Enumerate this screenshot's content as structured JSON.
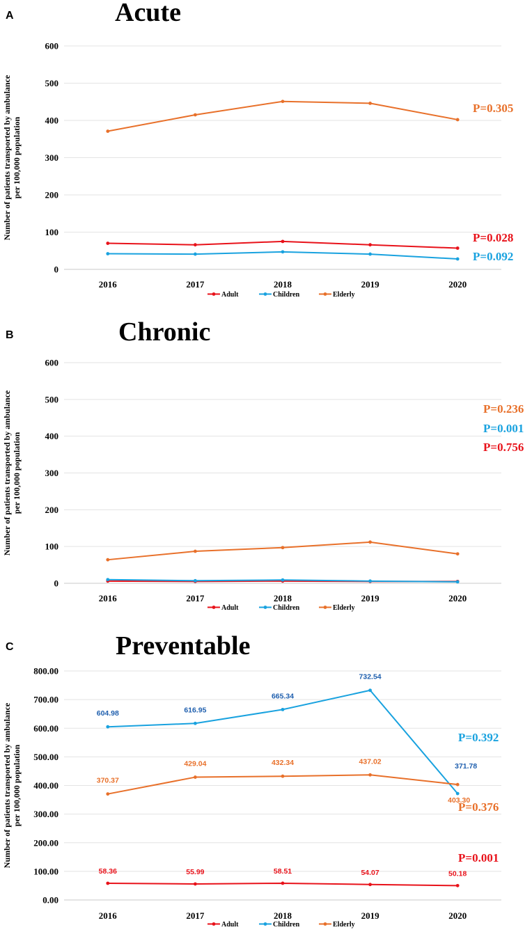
{
  "chart_data": [
    {
      "type": "line",
      "panel_label": "A",
      "title": "Acute",
      "ylabel_line1": "Number of patients transported by ambulance",
      "ylabel_line2": "per 100,000 population",
      "categories": [
        "2016",
        "2017",
        "2018",
        "2019",
        "2020"
      ],
      "ylim": [
        0,
        600
      ],
      "yticks": [
        "0",
        "100",
        "200",
        "300",
        "400",
        "500",
        "600"
      ],
      "grid": true,
      "legend_position": "bottom",
      "series": [
        {
          "name": "Adult",
          "color": "#e8121a",
          "values": [
            70,
            66,
            75,
            66,
            57
          ],
          "p_value": "P=0.028"
        },
        {
          "name": "Children",
          "color": "#19a2df",
          "values": [
            42,
            41,
            47,
            41,
            28
          ],
          "p_value": "P=0.092"
        },
        {
          "name": "Elderly",
          "color": "#e8702a",
          "values": [
            371,
            415,
            451,
            446,
            402
          ],
          "p_value": "P=0.305"
        }
      ]
    },
    {
      "type": "line",
      "panel_label": "B",
      "title": "Chronic",
      "ylabel_line1": "Number of patients transported by ambulance",
      "ylabel_line2": "per 100,000 population",
      "categories": [
        "2016",
        "2017",
        "2018",
        "2019",
        "2020"
      ],
      "ylim": [
        0,
        600
      ],
      "yticks": [
        "0",
        "100",
        "200",
        "300",
        "400",
        "500",
        "600"
      ],
      "grid": true,
      "legend_position": "bottom",
      "series": [
        {
          "name": "Adult",
          "color": "#e8121a",
          "values": [
            6,
            5,
            6,
            5,
            5
          ],
          "p_value": "P=0.756"
        },
        {
          "name": "Children",
          "color": "#19a2df",
          "values": [
            10,
            7,
            9,
            6,
            4
          ],
          "p_value": "P=0.001"
        },
        {
          "name": "Elderly",
          "color": "#e8702a",
          "values": [
            64,
            87,
            97,
            112,
            80
          ],
          "p_value": "P=0.236"
        }
      ]
    },
    {
      "type": "line",
      "panel_label": "C",
      "title": "Preventable",
      "ylabel_line1": "Number of patients transported by ambulance",
      "ylabel_line2": "per 100,000 population",
      "categories": [
        "2016",
        "2017",
        "2018",
        "2019",
        "2020"
      ],
      "ylim": [
        0,
        800
      ],
      "yticks": [
        "0.00",
        "100.00",
        "200.00",
        "300.00",
        "400.00",
        "500.00",
        "600.00",
        "700.00",
        "800.00"
      ],
      "grid": true,
      "legend_position": "bottom",
      "series": [
        {
          "name": "Adult",
          "color": "#e8121a",
          "label_color": "#e8121a",
          "values": [
            58.36,
            55.99,
            58.51,
            54.07,
            50.18
          ],
          "labels": [
            "58.36",
            "55.99",
            "58.51",
            "54.07",
            "50.18"
          ],
          "p_value": "P=0.001"
        },
        {
          "name": "Children",
          "color": "#19a2df",
          "label_color": "#1f5fae",
          "values": [
            604.98,
            616.95,
            665.34,
            732.54,
            371.78
          ],
          "labels": [
            "604.98",
            "616.95",
            "665.34",
            "732.54",
            "371.78"
          ],
          "p_value": "P=0.392"
        },
        {
          "name": "Elderly",
          "color": "#e8702a",
          "label_color": "#e8702a",
          "values": [
            370.37,
            429.04,
            432.34,
            437.02,
            403.3
          ],
          "labels": [
            "370.37",
            "429.04",
            "432.34",
            "437.02",
            "403.30"
          ],
          "p_value": "P=0.376"
        }
      ]
    }
  ]
}
